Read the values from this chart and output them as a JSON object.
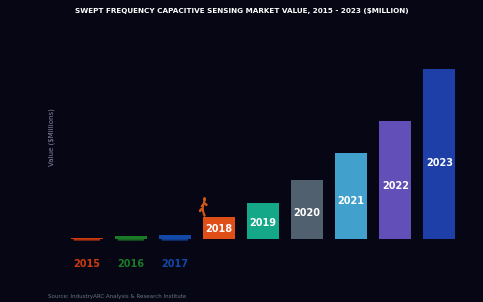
{
  "title": "SWEPT FREQUENCY CAPACITIVE SENSING MARKET VALUE, 2015 - 2023 ($MILLION)",
  "ylabel": "Value ($Millions)",
  "source": "Source: IndustryARC Analysis & Research Institute",
  "categories": [
    "2015",
    "2016",
    "2017",
    "2018",
    "2019",
    "2020",
    "2021",
    "2022",
    "2023"
  ],
  "values": [
    0.08,
    0.13,
    0.2,
    1.0,
    1.6,
    2.6,
    3.8,
    5.2,
    7.5
  ],
  "bar_colors": [
    "#cc3a10",
    "#1a7a28",
    "#1248a8",
    "#e04e18",
    "#15a888",
    "#50606e",
    "#42a0cc",
    "#6250b8",
    "#1e3ea8"
  ],
  "year_label_colors_axis": [
    "#cc3a10",
    "#1a7a28",
    "#1248a8"
  ],
  "bg_color": "#060614",
  "title_color": "#ffffff",
  "bar_label_fontsize": 7,
  "title_fontsize": 5.2,
  "ylabel_fontsize": 5,
  "source_fontsize": 4,
  "runner_color": "#d05518"
}
